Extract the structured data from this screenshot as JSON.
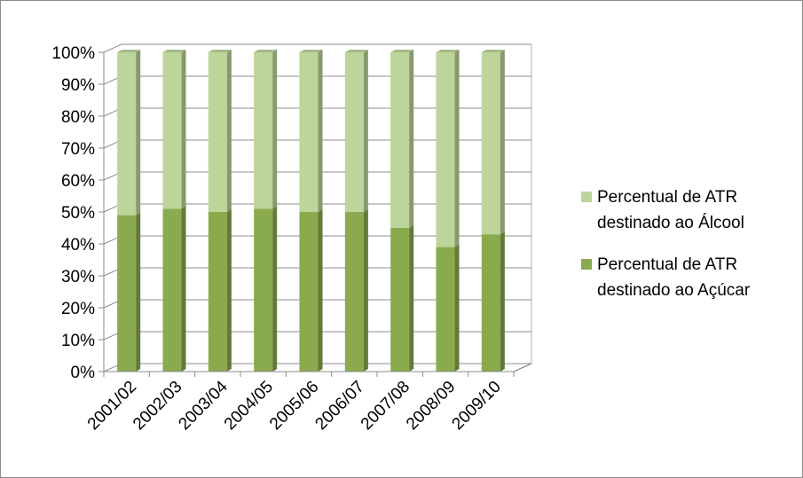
{
  "chart_data": {
    "type": "bar",
    "stacked": true,
    "three_d": true,
    "categories": [
      "2001/02",
      "2002/03",
      "2003/04",
      "2004/05",
      "2005/06",
      "2006/07",
      "2007/08",
      "2008/09",
      "2009/10"
    ],
    "series": [
      {
        "name": "Percentual de ATR destinado ao Açúcar",
        "color": "#8aaa4e",
        "values": [
          49,
          51,
          50,
          51,
          50,
          50,
          45,
          39,
          43
        ]
      },
      {
        "name": "Percentual de ATR destinado ao Álcool",
        "color": "#bdd49a",
        "values": [
          51,
          49,
          50,
          49,
          50,
          50,
          55,
          61,
          57
        ]
      }
    ],
    "y_ticks": [
      "0%",
      "10%",
      "20%",
      "30%",
      "40%",
      "50%",
      "60%",
      "70%",
      "80%",
      "90%",
      "100%"
    ],
    "ylim": [
      0,
      100
    ],
    "grid": true,
    "legend_position": "right"
  }
}
